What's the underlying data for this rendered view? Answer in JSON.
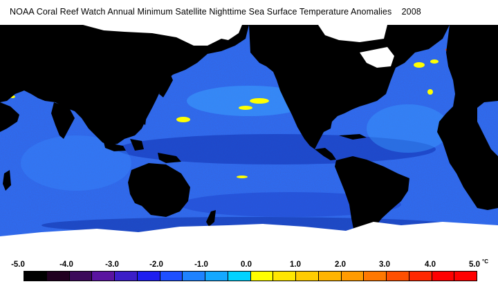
{
  "title": "NOAA Coral Reef Watch Annual Minimum Satellite Nighttime Sea Surface Temperature Anomalies    2008",
  "map": {
    "land_color": "#000000",
    "ice_color": "#ffffff",
    "ocean_base_color": "#2e6cf2",
    "hotspot_color": "#ffff00"
  },
  "legend": {
    "unit": "°C",
    "tick_labels": [
      "-5.0",
      "-4.0",
      "-3.0",
      "-2.0",
      "-1.0",
      "0.0",
      "1.0",
      "2.0",
      "3.0",
      "4.0",
      "5.0"
    ],
    "colors": [
      "#000000",
      "#200020",
      "#3c0a5a",
      "#5a14a0",
      "#3c1ec8",
      "#1e1ef0",
      "#1e50ff",
      "#1e82ff",
      "#14a8ff",
      "#00d2ff",
      "#ffff00",
      "#ffe600",
      "#ffcc00",
      "#ffb400",
      "#ff9b00",
      "#ff7800",
      "#ff5000",
      "#ff2800",
      "#ff0000",
      "#ff0000"
    ]
  }
}
